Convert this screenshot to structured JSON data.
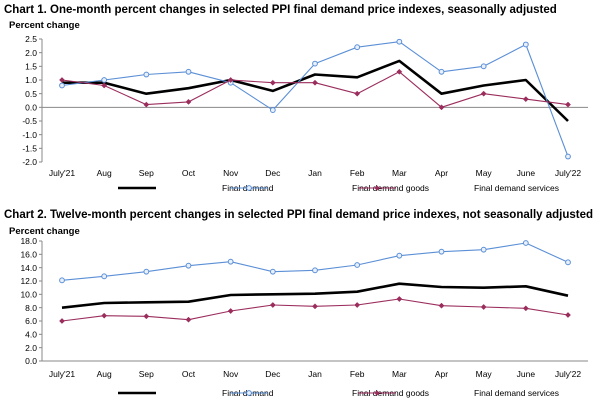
{
  "chart_data": [
    {
      "type": "line",
      "title": "Chart 1. One-month percent changes in selected PPI final demand price indexes, seasonally adjusted",
      "ylabel": "Percent change",
      "xlabel": "",
      "categories": [
        "July'21",
        "Aug",
        "Sep",
        "Oct",
        "Nov",
        "Dec",
        "Jan",
        "Feb",
        "Mar",
        "Apr",
        "May",
        "June",
        "July'22"
      ],
      "ylim": [
        -2.0,
        2.5
      ],
      "yticks": [
        "2.5",
        "2.0",
        "1.5",
        "1.0",
        "0.5",
        "0.0",
        "-0.5",
        "-1.0",
        "-1.5",
        "-2.0"
      ],
      "grid": false,
      "legend_position": "bottom",
      "series": [
        {
          "name": "Final demand",
          "color": "#000000",
          "marker": "none",
          "values": [
            0.9,
            0.9,
            0.5,
            0.7,
            1.0,
            0.6,
            1.2,
            1.1,
            1.7,
            0.5,
            0.8,
            1.0,
            -0.5
          ]
        },
        {
          "name": "Final demand goods",
          "color": "#5b8fd6",
          "marker": "circle",
          "values": [
            0.8,
            1.0,
            1.2,
            1.3,
            0.9,
            -0.1,
            1.6,
            2.2,
            2.4,
            1.3,
            1.5,
            2.3,
            -1.8
          ]
        },
        {
          "name": "Final demand services",
          "color": "#9b2d5d",
          "marker": "diamond",
          "values": [
            1.0,
            0.8,
            0.1,
            0.2,
            1.0,
            0.9,
            0.9,
            0.5,
            1.3,
            0.0,
            0.5,
            0.3,
            0.1
          ]
        }
      ]
    },
    {
      "type": "line",
      "title": "Chart 2. Twelve-month percent changes in selected PPI final demand price indexes, not seasonally adjusted",
      "ylabel": "Percent change",
      "xlabel": "",
      "categories": [
        "July'21",
        "Aug",
        "Sep",
        "Oct",
        "Nov",
        "Dec",
        "Jan",
        "Feb",
        "Mar",
        "Apr",
        "May",
        "June",
        "July'22"
      ],
      "ylim": [
        0.0,
        18.0
      ],
      "yticks": [
        "18.0",
        "16.0",
        "14.0",
        "12.0",
        "10.0",
        "8.0",
        "6.0",
        "4.0",
        "2.0",
        "0.0"
      ],
      "grid": false,
      "legend_position": "bottom",
      "series": [
        {
          "name": "Final demand",
          "color": "#000000",
          "marker": "none",
          "values": [
            8.0,
            8.7,
            8.8,
            8.9,
            9.9,
            10.0,
            10.1,
            10.4,
            11.6,
            11.1,
            11.0,
            11.2,
            9.8
          ]
        },
        {
          "name": "Final demand goods",
          "color": "#5b8fd6",
          "marker": "circle",
          "values": [
            12.1,
            12.7,
            13.4,
            14.3,
            14.9,
            13.4,
            13.6,
            14.4,
            15.8,
            16.4,
            16.7,
            17.7,
            14.8
          ]
        },
        {
          "name": "Final demand services",
          "color": "#9b2d5d",
          "marker": "diamond",
          "values": [
            6.0,
            6.8,
            6.7,
            6.2,
            7.5,
            8.4,
            8.2,
            8.4,
            9.3,
            8.3,
            8.1,
            7.9,
            6.9
          ]
        }
      ]
    }
  ]
}
